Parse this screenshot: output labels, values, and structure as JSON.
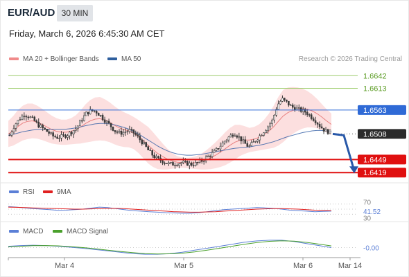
{
  "header": {
    "pair": "EUR/AUD",
    "timeframe": "30 MIN",
    "datetime": "Friday, March 6, 2026 6:45:30 AM CET",
    "credit": "Research © 2026 Trading Central"
  },
  "legend_main": [
    {
      "label": "MA 20 + Bollinger Bands",
      "color": "#f08a8a"
    },
    {
      "label": "MA 50",
      "color": "#2f5f9e"
    }
  ],
  "legend_rsi": [
    {
      "label": "RSI",
      "color": "#5b7fd6"
    },
    {
      "label": "9MA",
      "color": "#e02020"
    }
  ],
  "legend_macd": [
    {
      "label": "MACD",
      "color": "#5b7fd6"
    },
    {
      "label": "MACD Signal",
      "color": "#4aa02c"
    }
  ],
  "colors": {
    "bollinger_fill": "#fcd9d9",
    "ma20": "#e88080",
    "ma50": "#3a64a8",
    "candle": "#3a3a3a",
    "resistance": "#9ccc6a",
    "pivot": "#2f6ad6",
    "support": "#e01010",
    "forecast_arrow": "#2858a8",
    "current_badge": "#2b2b2b"
  },
  "chart_data": {
    "type": "line",
    "xlabel": "",
    "ylabel": "",
    "x_ticks": [
      "Mar 4",
      "Mar 5",
      "Mar 6",
      "Mar 14"
    ],
    "ylim": [
      1.6405,
      1.666
    ],
    "levels": [
      {
        "value": "1.6642",
        "kind": "resistance"
      },
      {
        "value": "1.6613",
        "kind": "resistance"
      },
      {
        "value": "1.6563",
        "kind": "pivot"
      },
      {
        "value": "1.6508",
        "kind": "current"
      },
      {
        "value": "1.6449",
        "kind": "support"
      },
      {
        "value": "1.6419",
        "kind": "support"
      }
    ],
    "price_path": [
      1.6505,
      1.6528,
      1.6542,
      1.6553,
      1.6548,
      1.654,
      1.6528,
      1.652,
      1.6512,
      1.6503,
      1.65,
      1.6502,
      1.6506,
      1.6513,
      1.6522,
      1.654,
      1.6555,
      1.6562,
      1.656,
      1.655,
      1.6538,
      1.6528,
      1.6515,
      1.651,
      1.6512,
      1.6516,
      1.651,
      1.6498,
      1.6485,
      1.647,
      1.6458,
      1.645,
      1.6445,
      1.644,
      1.6438,
      1.644,
      1.6442,
      1.644,
      1.6438,
      1.644,
      1.6445,
      1.6452,
      1.646,
      1.6468,
      1.648,
      1.6492,
      1.6502,
      1.651,
      1.65,
      1.6488,
      1.6478,
      1.6488,
      1.65,
      1.6512,
      1.6525,
      1.654,
      1.6575,
      1.6588,
      1.658,
      1.657,
      1.6566,
      1.6562,
      1.6558,
      1.6548,
      1.6538,
      1.6525,
      1.6515,
      1.6512
    ],
    "ma20": [
      1.6508,
      1.6515,
      1.6525,
      1.6533,
      1.6537,
      1.6538,
      1.6535,
      1.653,
      1.6524,
      1.6518,
      1.6514,
      1.6512,
      1.6512,
      1.6514,
      1.6518,
      1.6524,
      1.6532,
      1.6538,
      1.6542,
      1.6543,
      1.654,
      1.6535,
      1.6528,
      1.6522,
      1.6518,
      1.6515,
      1.651,
      1.6502,
      1.6492,
      1.6482,
      1.6472,
      1.6463,
      1.6456,
      1.645,
      1.6446,
      1.6443,
      1.6442,
      1.6441,
      1.6441,
      1.6442,
      1.6444,
      1.6448,
      1.6453,
      1.6459,
      1.6466,
      1.6474,
      1.6482,
      1.6489,
      1.6493,
      1.6494,
      1.6494,
      1.6496,
      1.65,
      1.6506,
      1.6514,
      1.6524,
      1.6537,
      1.6549,
      1.6557,
      1.6562,
      1.6565,
      1.6566,
      1.6565,
      1.6561,
      1.6555,
      1.6547,
      1.6538,
      1.653
    ],
    "ma50": [
      1.6505,
      1.6507,
      1.651,
      1.6513,
      1.6515,
      1.6517,
      1.6518,
      1.6519,
      1.6519,
      1.6519,
      1.6519,
      1.6519,
      1.6519,
      1.652,
      1.6522,
      1.6524,
      1.6527,
      1.6529,
      1.6531,
      1.6532,
      1.6532,
      1.6531,
      1.6529,
      1.6526,
      1.6523,
      1.6519,
      1.6514,
      1.6508,
      1.6501,
      1.6494,
      1.6487,
      1.648,
      1.6474,
      1.6469,
      1.6465,
      1.6462,
      1.646,
      1.6459,
      1.6459,
      1.646,
      1.6461,
      1.6463,
      1.6465,
      1.6467,
      1.6469,
      1.6471,
      1.6473,
      1.6475,
      1.6476,
      1.6477,
      1.6478,
      1.648,
      1.6482,
      1.6484,
      1.6487,
      1.649,
      1.6494,
      1.6498,
      1.6502,
      1.6505,
      1.6508,
      1.6511,
      1.6513,
      1.6515,
      1.6516,
      1.6516,
      1.6515,
      1.6514
    ],
    "bb_width": [
      0.003,
      0.0034,
      0.0038,
      0.004,
      0.0041,
      0.004,
      0.0038,
      0.0036,
      0.0034,
      0.0032,
      0.003,
      0.0029,
      0.0029,
      0.003,
      0.0033,
      0.0038,
      0.0044,
      0.0048,
      0.005,
      0.005,
      0.0048,
      0.0046,
      0.0044,
      0.0042,
      0.004,
      0.0038,
      0.0037,
      0.0038,
      0.004,
      0.0042,
      0.004,
      0.0036,
      0.003,
      0.0024,
      0.0018,
      0.0014,
      0.0012,
      0.0012,
      0.0013,
      0.0015,
      0.0018,
      0.0022,
      0.0026,
      0.003,
      0.0034,
      0.0038,
      0.004,
      0.004,
      0.0036,
      0.0032,
      0.0028,
      0.0028,
      0.003,
      0.0034,
      0.004,
      0.0048,
      0.0056,
      0.006,
      0.0058,
      0.0054,
      0.005,
      0.0046,
      0.0042,
      0.0038,
      0.0034,
      0.003,
      0.0027,
      0.0025
    ],
    "forecast": {
      "from": 1.6508,
      "to": 1.6419
    },
    "rsi": {
      "level_labels": [
        "70",
        "41.52",
        "30"
      ],
      "rsi_values": [
        60,
        58,
        55,
        52,
        50,
        48,
        45,
        46,
        48,
        50,
        54,
        58,
        56,
        52,
        48,
        44,
        42,
        40,
        38,
        36,
        35,
        34,
        34,
        36,
        40,
        44,
        48,
        50,
        52,
        54,
        56,
        55,
        53,
        50,
        46,
        44,
        42,
        40,
        41,
        42
      ],
      "ma9_values": [
        58,
        57,
        56,
        55,
        54,
        53,
        52,
        51,
        50,
        50,
        51,
        52,
        53,
        53,
        52,
        50,
        48,
        46,
        44,
        42,
        40,
        39,
        38,
        38,
        39,
        40,
        42,
        44,
        46,
        48,
        50,
        51,
        52,
        52,
        51,
        50,
        48,
        46,
        45,
        44
      ]
    },
    "macd": {
      "level_label": "-0.00",
      "macd_values": [
        0.2,
        0.3,
        0.35,
        0.3,
        0.2,
        0.05,
        -0.1,
        -0.3,
        -0.5,
        -0.7,
        -0.9,
        -1.0,
        -1.0,
        -0.9,
        -0.7,
        -0.4,
        -0.1,
        0.2,
        0.5,
        0.8,
        1.0,
        1.1,
        1.1,
        0.9,
        0.6,
        0.3,
        0.0
      ],
      "signal_values": [
        0.1,
        0.2,
        0.28,
        0.3,
        0.26,
        0.15,
        0.0,
        -0.18,
        -0.38,
        -0.58,
        -0.76,
        -0.9,
        -0.96,
        -0.94,
        -0.84,
        -0.64,
        -0.38,
        -0.1,
        0.2,
        0.5,
        0.76,
        0.94,
        1.02,
        0.96,
        0.78,
        0.52,
        0.25
      ]
    }
  }
}
